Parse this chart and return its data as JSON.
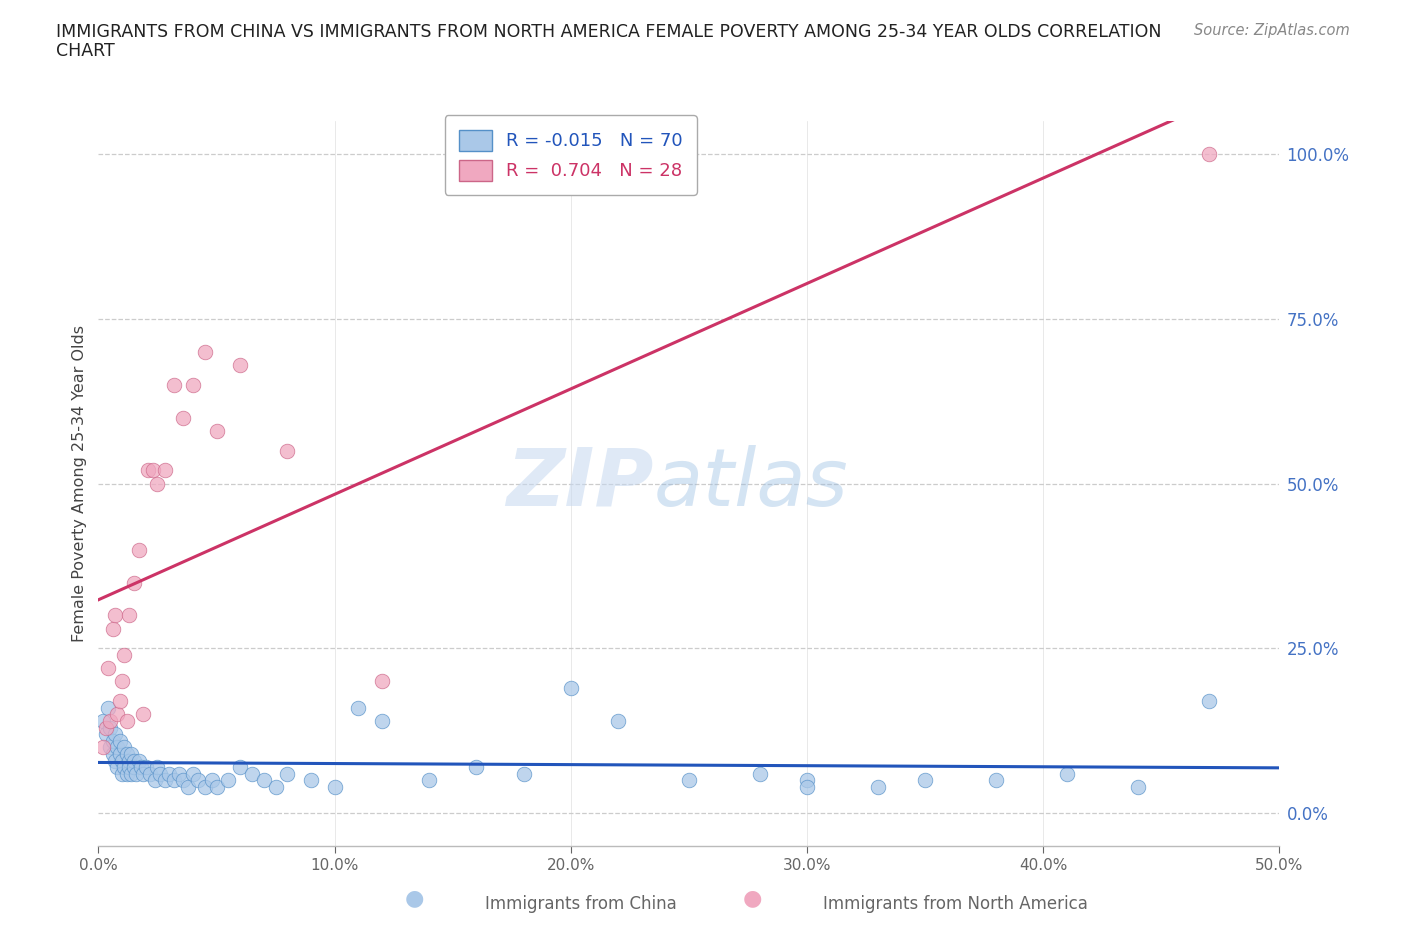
{
  "title_line1": "IMMIGRANTS FROM CHINA VS IMMIGRANTS FROM NORTH AMERICA FEMALE POVERTY AMONG 25-34 YEAR OLDS CORRELATION",
  "title_line2": "CHART",
  "source": "Source: ZipAtlas.com",
  "ylabel": "Female Poverty Among 25-34 Year Olds",
  "watermark_zip": "ZIP",
  "watermark_atlas": "atlas",
  "xlim": [
    0.0,
    0.5
  ],
  "ylim": [
    -0.05,
    1.05
  ],
  "yplot_min": 0.0,
  "yplot_max": 1.0,
  "ytick_values": [
    0.0,
    0.25,
    0.5,
    0.75,
    1.0
  ],
  "xtick_values": [
    0.0,
    0.1,
    0.2,
    0.3,
    0.4,
    0.5
  ],
  "legend_china_label": "R = -0.015   N = 70",
  "legend_na_label": "R =  0.704   N = 28",
  "china_scatter_color": "#aac8e8",
  "china_edge_color": "#5590c8",
  "china_line_color": "#2255bb",
  "na_scatter_color": "#f0a8c0",
  "na_edge_color": "#cc6688",
  "na_line_color": "#cc3366",
  "grid_color": "#cccccc",
  "right_yaxis_color": "#4472c4",
  "bottom_label_color": "#666666",
  "title_color": "#222222",
  "source_color": "#888888",
  "china_x": [
    0.002,
    0.003,
    0.004,
    0.005,
    0.005,
    0.006,
    0.006,
    0.007,
    0.007,
    0.008,
    0.008,
    0.009,
    0.009,
    0.01,
    0.01,
    0.011,
    0.011,
    0.012,
    0.012,
    0.013,
    0.013,
    0.014,
    0.014,
    0.015,
    0.015,
    0.016,
    0.017,
    0.018,
    0.019,
    0.02,
    0.022,
    0.024,
    0.025,
    0.026,
    0.028,
    0.03,
    0.032,
    0.034,
    0.036,
    0.038,
    0.04,
    0.042,
    0.045,
    0.048,
    0.05,
    0.055,
    0.06,
    0.065,
    0.07,
    0.075,
    0.08,
    0.09,
    0.1,
    0.11,
    0.12,
    0.14,
    0.16,
    0.18,
    0.2,
    0.22,
    0.25,
    0.28,
    0.3,
    0.33,
    0.38,
    0.41,
    0.44,
    0.47,
    0.3,
    0.35
  ],
  "china_y": [
    0.14,
    0.12,
    0.16,
    0.1,
    0.13,
    0.09,
    0.11,
    0.08,
    0.12,
    0.07,
    0.1,
    0.09,
    0.11,
    0.08,
    0.06,
    0.1,
    0.07,
    0.09,
    0.06,
    0.08,
    0.07,
    0.09,
    0.06,
    0.08,
    0.07,
    0.06,
    0.08,
    0.07,
    0.06,
    0.07,
    0.06,
    0.05,
    0.07,
    0.06,
    0.05,
    0.06,
    0.05,
    0.06,
    0.05,
    0.04,
    0.06,
    0.05,
    0.04,
    0.05,
    0.04,
    0.05,
    0.07,
    0.06,
    0.05,
    0.04,
    0.06,
    0.05,
    0.04,
    0.16,
    0.14,
    0.05,
    0.07,
    0.06,
    0.19,
    0.14,
    0.05,
    0.06,
    0.05,
    0.04,
    0.05,
    0.06,
    0.04,
    0.17,
    0.04,
    0.05
  ],
  "na_x": [
    0.002,
    0.003,
    0.004,
    0.005,
    0.006,
    0.007,
    0.008,
    0.009,
    0.01,
    0.011,
    0.012,
    0.013,
    0.015,
    0.017,
    0.019,
    0.021,
    0.023,
    0.025,
    0.028,
    0.032,
    0.036,
    0.04,
    0.045,
    0.05,
    0.06,
    0.08,
    0.12,
    0.47
  ],
  "na_y": [
    0.1,
    0.13,
    0.22,
    0.14,
    0.28,
    0.3,
    0.15,
    0.17,
    0.2,
    0.24,
    0.14,
    0.3,
    0.35,
    0.4,
    0.15,
    0.52,
    0.52,
    0.5,
    0.52,
    0.65,
    0.6,
    0.65,
    0.7,
    0.58,
    0.68,
    0.55,
    0.2,
    1.0
  ]
}
